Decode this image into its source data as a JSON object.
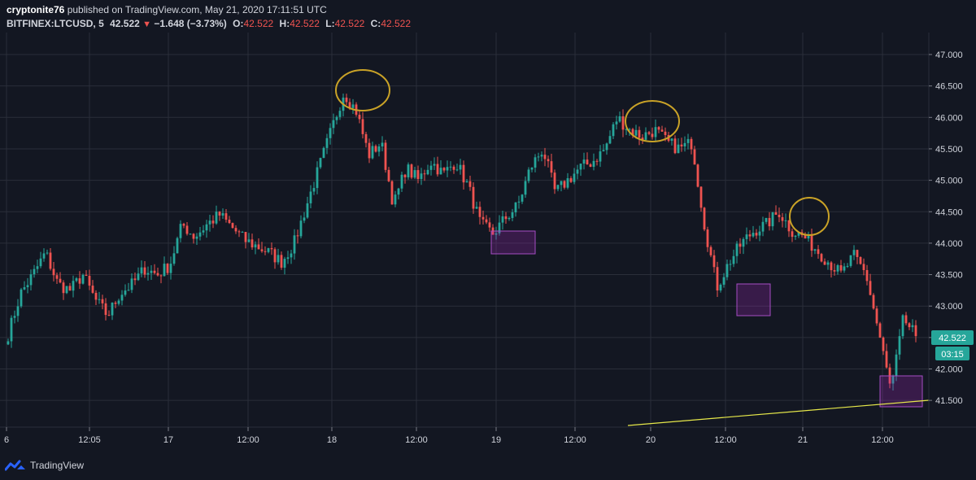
{
  "header": {
    "author": "cryptonite76",
    "published": "published on TradingView.com, May 21, 2020 17:11:51 UTC",
    "symbol": "BITFINEX:LTCUSD, 5",
    "last": "42.522",
    "change": "−1.648 (−3.73%)",
    "o_label": "O:",
    "o": "42.522",
    "h_label": "H:",
    "h": "42.522",
    "l_label": "L:",
    "l": "42.522",
    "c_label": "C:",
    "c": "42.522"
  },
  "price_tag": "42.522",
  "time_tag": "03:15",
  "footer": {
    "brand": "TradingView",
    "logo_icon": "tradingview-logo-icon"
  },
  "colors": {
    "background": "#131722",
    "grid": "#2a2e39",
    "up": "#26a69a",
    "down": "#ef5350",
    "circle": "#c9a227",
    "box": "#9c27b0",
    "trendline": "#e6e84a"
  },
  "chart_data": {
    "type": "candlestick",
    "title": "",
    "xlabel": "",
    "ylabel": "",
    "ylim": [
      41.3,
      47.1
    ],
    "y_ticks": [
      "47.000",
      "46.500",
      "46.000",
      "45.500",
      "45.000",
      "44.500",
      "44.000",
      "43.500",
      "43.000",
      "42.500",
      "42.000",
      "41.500"
    ],
    "x_ticks": [
      "6",
      "12:05",
      "17",
      "12:00",
      "18",
      "12:00",
      "19",
      "12:00",
      "20",
      "12:00",
      "21",
      "12:00"
    ],
    "grid": true,
    "series": [
      {
        "interval": "5",
        "close_path": [
          [
            "6",
            42.55
          ],
          [
            "6",
            43.2
          ],
          [
            "6",
            43.5
          ],
          [
            "6",
            43.85
          ],
          [
            "6",
            43.35
          ],
          [
            "12:05",
            43.25
          ],
          [
            "12:05",
            43.5
          ],
          [
            "12:05",
            43.1
          ],
          [
            "12:05",
            42.85
          ],
          [
            "12:05",
            43.2
          ],
          [
            "12:05",
            43.35
          ],
          [
            "12:05",
            43.6
          ],
          [
            "17",
            43.5
          ],
          [
            "17",
            43.65
          ],
          [
            "17",
            44.3
          ],
          [
            "17",
            44.1
          ],
          [
            "17",
            44.3
          ],
          [
            "12:00",
            44.45
          ],
          [
            "12:00",
            44.25
          ],
          [
            "12:00",
            44.05
          ],
          [
            "12:00",
            43.95
          ],
          [
            "12:00",
            43.85
          ],
          [
            "12:00",
            43.7
          ],
          [
            "18",
            44.0
          ],
          [
            "18",
            44.6
          ],
          [
            "18",
            45.2
          ],
          [
            "18",
            45.8
          ],
          [
            "18",
            46.4
          ],
          [
            "18",
            46.1
          ],
          [
            "18",
            45.4
          ],
          [
            "18",
            45.6
          ],
          [
            "18",
            44.6
          ],
          [
            "12:00",
            45.2
          ],
          [
            "12:00",
            45.0
          ],
          [
            "12:00",
            45.3
          ],
          [
            "12:00",
            45.1
          ],
          [
            "12:00",
            45.3
          ],
          [
            "19",
            44.9
          ],
          [
            "19",
            44.3
          ],
          [
            "19",
            44.15
          ],
          [
            "19",
            44.4
          ],
          [
            "19",
            44.6
          ],
          [
            "12:00",
            45.2
          ],
          [
            "12:00",
            45.5
          ],
          [
            "12:00",
            44.8
          ],
          [
            "12:00",
            45.0
          ],
          [
            "12:00",
            45.2
          ],
          [
            "12:00",
            45.3
          ],
          [
            "12:00",
            45.5
          ],
          [
            "20",
            46.0
          ],
          [
            "20",
            45.8
          ],
          [
            "20",
            45.7
          ],
          [
            "20",
            45.8
          ],
          [
            "20",
            45.6
          ],
          [
            "12:00",
            45.5
          ],
          [
            "12:00",
            45.6
          ],
          [
            "12:00",
            44.3
          ],
          [
            "12:00",
            43.3
          ],
          [
            "12:00",
            43.7
          ],
          [
            "12:00",
            44.0
          ],
          [
            "12:00",
            44.2
          ],
          [
            "21",
            44.3
          ],
          [
            "21",
            44.5
          ],
          [
            "21",
            44.2
          ],
          [
            "21",
            44.1
          ],
          [
            "21",
            43.9
          ],
          [
            "21",
            43.7
          ],
          [
            "12:00",
            43.5
          ],
          [
            "12:00",
            43.8
          ],
          [
            "12:00",
            43.5
          ],
          [
            "12:00",
            42.6
          ],
          [
            "12:00",
            41.65
          ],
          [
            "12:00",
            42.8
          ],
          [
            "12:00",
            42.522
          ]
        ]
      }
    ],
    "annotations": {
      "circles_at_highs": [
        46.4,
        45.95,
        44.45
      ],
      "boxes_at_lows": [
        44.02,
        43.12,
        41.65
      ],
      "trendline": "ascending support line"
    }
  }
}
